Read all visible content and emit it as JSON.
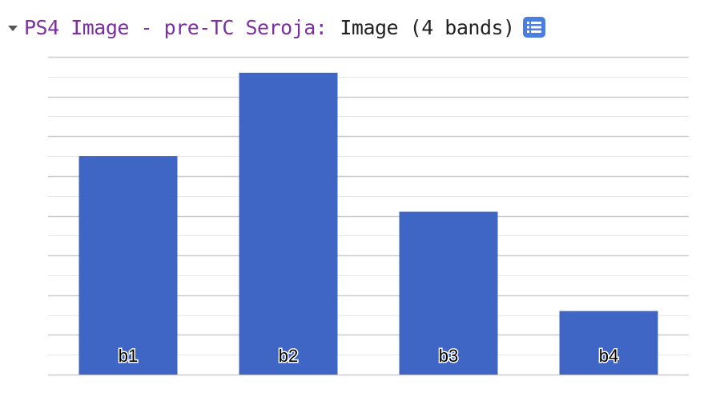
{
  "header": {
    "title": "PS4 Image - pre-TC Seroja:",
    "type_label": "Image (4 bands)"
  },
  "icons": {
    "toggle": "caret-down-icon",
    "list": "list-icon"
  },
  "colors": {
    "bar": "#4066c5",
    "title": "#7b2fa0",
    "gridline": "#d9d9d9"
  },
  "chart_data": {
    "type": "bar",
    "categories": [
      "b1",
      "b2",
      "b3",
      "b4"
    ],
    "values": [
      5.5,
      7.6,
      4.1,
      1.6
    ],
    "ylim": [
      0,
      8
    ],
    "grid": true,
    "legend": "none"
  }
}
